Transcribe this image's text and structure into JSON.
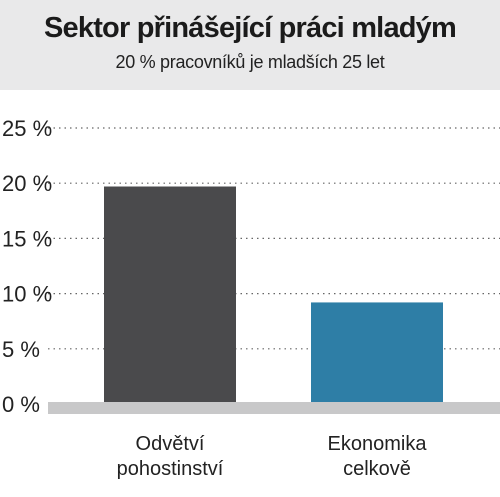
{
  "chart_data": {
    "type": "bar",
    "title": "Sektor přinášející práci mladým",
    "subtitle": "20 % pracovníků je mladších 25 let",
    "categories": [
      [
        "Odvětví",
        "pohostinství"
      ],
      [
        "Ekonomika",
        "celkově"
      ]
    ],
    "values": [
      19.7,
      9.2
    ],
    "bar_colors": [
      "#4a4a4c",
      "#2e7ea6"
    ],
    "ylim": [
      0,
      25
    ],
    "yticks": [
      {
        "value": 0,
        "label": "0 %"
      },
      {
        "value": 5,
        "label": "5 %"
      },
      {
        "value": 10,
        "label": "10 %"
      },
      {
        "value": 15,
        "label": "15 %"
      },
      {
        "value": 20,
        "label": "20 %"
      },
      {
        "value": 25,
        "label": "25 %"
      }
    ],
    "grid": true,
    "grid_style": "dotted"
  }
}
